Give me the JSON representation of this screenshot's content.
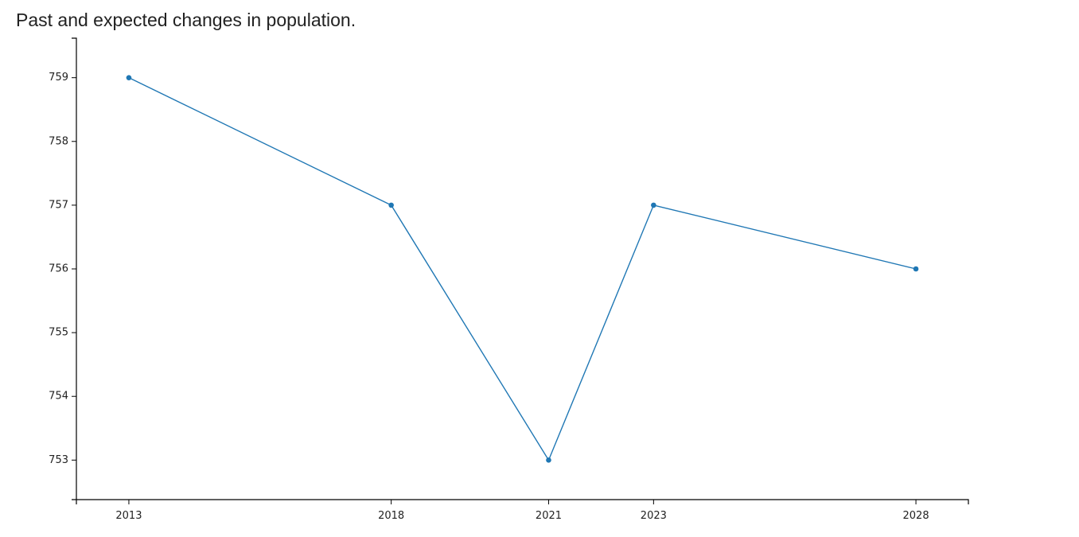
{
  "chart_data": {
    "type": "line",
    "title": "Past and expected changes in population.",
    "xlabel": "",
    "ylabel": "",
    "x": [
      "2013",
      "2018",
      "2021",
      "2023",
      "2028"
    ],
    "x_numeric": [
      2013,
      2018,
      2021,
      2023,
      2028
    ],
    "xlim": [
      2012,
      2029
    ],
    "series": [
      {
        "values": [
          759,
          757,
          753,
          757,
          756
        ]
      }
    ],
    "yticks": [
      753,
      754,
      755,
      756,
      757,
      758,
      759
    ],
    "ylim": [
      752.38,
      759.62
    ],
    "grid": false,
    "legend": "none",
    "line_color": "#1f77b4",
    "axis_color": "#000000"
  }
}
